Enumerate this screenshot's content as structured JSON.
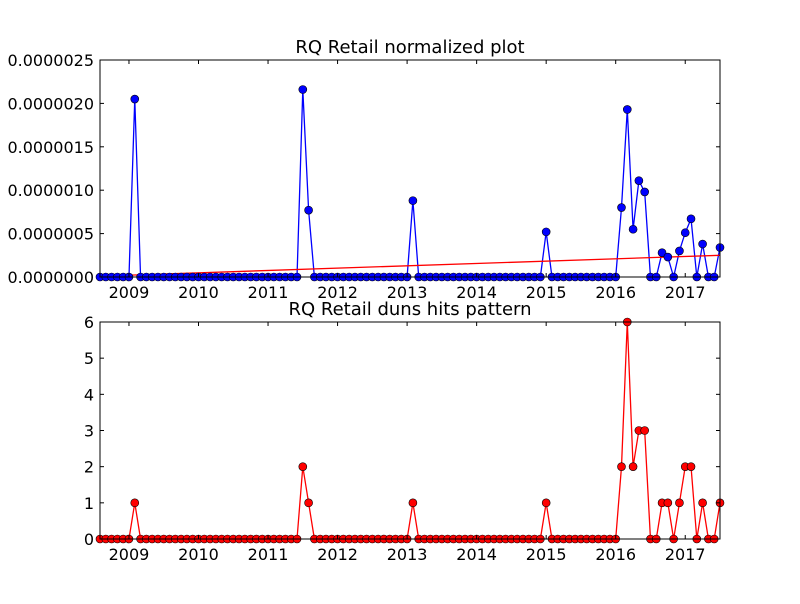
{
  "chart_data": [
    {
      "type": "line",
      "title": "RQ Retail normalized plot",
      "xlabel": "",
      "ylabel": "",
      "x_ticks": [
        "2009",
        "2010",
        "2011",
        "2012",
        "2013",
        "2014",
        "2015",
        "2016",
        "2017"
      ],
      "y_ticks": [
        "0.0000000",
        "0.0000005",
        "0.0000010",
        "0.0000015",
        "0.0000020",
        "0.0000025"
      ],
      "xlim": [
        "2008-08",
        "2017-07"
      ],
      "ylim": [
        0,
        2.5e-06
      ],
      "grid": false,
      "colors": {
        "series": "#0000ff",
        "trend": "#ff0000"
      },
      "series": [
        {
          "points": [
            [
              "2009-02",
              2.05e-06
            ],
            [
              "2011-07",
              2.16e-06
            ],
            [
              "2011-08",
              7.7e-07
            ],
            [
              "2013-02",
              8.8e-07
            ],
            [
              "2015-01",
              5.2e-07
            ],
            [
              "2016-02",
              8e-07
            ],
            [
              "2016-03",
              1.93e-06
            ],
            [
              "2016-04",
              5.5e-07
            ],
            [
              "2016-05",
              1.11e-06
            ],
            [
              "2016-06",
              9.8e-07
            ],
            [
              "2016-09",
              2.8e-07
            ],
            [
              "2016-10",
              2.3e-07
            ],
            [
              "2016-12",
              3e-07
            ],
            [
              "2017-01",
              5.1e-07
            ],
            [
              "2017-02",
              6.7e-07
            ],
            [
              "2017-04",
              3.8e-07
            ],
            [
              "2017-07",
              3.4e-07
            ]
          ],
          "baseline": 0
        },
        {
          "trend": [
            [
              "2008-08",
              1e-08
            ],
            [
              "2017-07",
              2.5e-07
            ]
          ]
        }
      ]
    },
    {
      "type": "line",
      "title": "RQ Retail duns hits pattern",
      "xlabel": "",
      "ylabel": "",
      "x_ticks": [
        "2009",
        "2010",
        "2011",
        "2012",
        "2013",
        "2014",
        "2015",
        "2016",
        "2017"
      ],
      "y_ticks": [
        "0",
        "1",
        "2",
        "3",
        "4",
        "5",
        "6"
      ],
      "xlim": [
        "2008-08",
        "2017-07"
      ],
      "ylim": [
        0,
        6
      ],
      "grid": false,
      "colors": {
        "series": "#ff0000"
      },
      "series": [
        {
          "points": [
            [
              "2009-02",
              1
            ],
            [
              "2011-07",
              2
            ],
            [
              "2011-08",
              1
            ],
            [
              "2013-02",
              1
            ],
            [
              "2015-01",
              1
            ],
            [
              "2016-02",
              2
            ],
            [
              "2016-03",
              6
            ],
            [
              "2016-04",
              2
            ],
            [
              "2016-05",
              3
            ],
            [
              "2016-06",
              3
            ],
            [
              "2016-09",
              1
            ],
            [
              "2016-10",
              1
            ],
            [
              "2016-12",
              1
            ],
            [
              "2017-01",
              2
            ],
            [
              "2017-02",
              2
            ],
            [
              "2017-04",
              1
            ],
            [
              "2017-07",
              1
            ]
          ],
          "baseline": 0
        }
      ]
    }
  ]
}
